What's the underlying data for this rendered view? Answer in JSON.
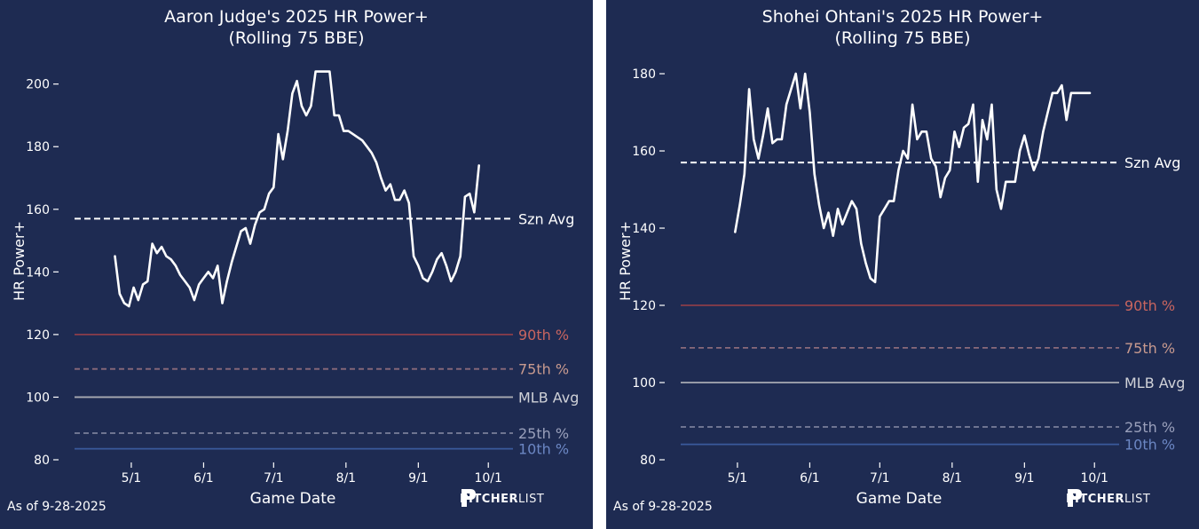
{
  "colors": {
    "background": "#1e2b52",
    "line": "#ffffff",
    "p90": "#8b3d4a",
    "p75": "#8a6a7a",
    "mlb_avg": "#a8aab2",
    "p25": "#7a7f9a",
    "p10": "#3a5a9c",
    "label_p90": "#c8655f",
    "label_p75": "#c89a8f",
    "label_mlb": "#d0d2d8",
    "label_p25": "#9aa0bb",
    "label_p10": "#6c87c4"
  },
  "footer": {
    "as_of": "As of 9-28-2025",
    "brand_bold": "PITCHER",
    "brand_light": "LIST"
  },
  "chart_data": [
    {
      "type": "line",
      "title": "Aaron Judge's 2025 HR Power+",
      "subtitle": "(Rolling 75 BBE)",
      "xlabel": "Game Date",
      "ylabel": "HR Power+",
      "xticks": [
        "5/1",
        "6/1",
        "7/1",
        "8/1",
        "9/1",
        "10/1"
      ],
      "yticks": [
        80,
        100,
        120,
        140,
        160,
        180,
        200
      ],
      "ylim": [
        80,
        207
      ],
      "reference_lines": [
        {
          "name": "Szn Avg",
          "value": 157,
          "style": "dashed",
          "color_key": "line",
          "label_color_key": "line"
        },
        {
          "name": "90th %",
          "value": 120,
          "style": "solid",
          "color_key": "p90",
          "label_color_key": "label_p90"
        },
        {
          "name": "75th %",
          "value": 109,
          "style": "dashed",
          "color_key": "p75",
          "label_color_key": "label_p75"
        },
        {
          "name": "MLB Avg",
          "value": 100,
          "style": "solid",
          "color_key": "mlb_avg",
          "label_color_key": "label_mlb"
        },
        {
          "name": "25th %",
          "value": 88.5,
          "style": "dashed",
          "color_key": "p25",
          "label_color_key": "label_p25"
        },
        {
          "name": "10th %",
          "value": 83.5,
          "style": "solid",
          "color_key": "p10",
          "label_color_key": "label_p10"
        }
      ],
      "x": [
        "4/24",
        "4/26",
        "4/28",
        "4/30",
        "5/2",
        "5/4",
        "5/6",
        "5/8",
        "5/10",
        "5/12",
        "5/14",
        "5/16",
        "5/18",
        "5/20",
        "5/22",
        "5/24",
        "5/26",
        "5/28",
        "5/30",
        "6/1",
        "6/3",
        "6/5",
        "6/7",
        "6/9",
        "6/11",
        "6/13",
        "6/15",
        "6/17",
        "6/19",
        "6/21",
        "6/23",
        "6/25",
        "6/27",
        "6/29",
        "7/1",
        "7/3",
        "7/5",
        "7/7",
        "7/9",
        "7/11",
        "7/13",
        "7/15",
        "7/17",
        "7/19",
        "7/21",
        "7/23",
        "7/25",
        "7/27",
        "7/29",
        "7/31",
        "8/2",
        "8/4",
        "8/6",
        "8/8",
        "8/10",
        "8/12",
        "8/14",
        "8/16",
        "8/18",
        "8/20",
        "8/22",
        "8/24",
        "8/26",
        "8/28",
        "8/30",
        "9/1",
        "9/3",
        "9/5",
        "9/7",
        "9/9",
        "9/11",
        "9/13",
        "9/15",
        "9/17",
        "9/19",
        "9/21",
        "9/23",
        "9/25",
        "9/27"
      ],
      "values": [
        145,
        133,
        130,
        129,
        135,
        131,
        136,
        137,
        149,
        146,
        148,
        145,
        144,
        142,
        139,
        137,
        135,
        131,
        136,
        138,
        140,
        138,
        142,
        130,
        137,
        143,
        148,
        153,
        154,
        149,
        155,
        159,
        160,
        165,
        167,
        184,
        176,
        185,
        197,
        201,
        193,
        190,
        193,
        204,
        204,
        204,
        204,
        190,
        190,
        185,
        185,
        184,
        183,
        182,
        180,
        178,
        175,
        170,
        166,
        168,
        163,
        163,
        166,
        162,
        145,
        142,
        138,
        137,
        140,
        144,
        146,
        142,
        137,
        140,
        145,
        164,
        165,
        159,
        174
      ]
    },
    {
      "type": "line",
      "title": "Shohei Ohtani's 2025 HR Power+",
      "subtitle": "(Rolling 75 BBE)",
      "xlabel": "Game Date",
      "ylabel": "HR Power+",
      "xticks": [
        "5/1",
        "6/1",
        "7/1",
        "8/1",
        "9/1",
        "10/1"
      ],
      "yticks": [
        80,
        100,
        120,
        140,
        160,
        180
      ],
      "ylim": [
        80,
        183
      ],
      "reference_lines": [
        {
          "name": "Szn Avg",
          "value": 157,
          "style": "dashed",
          "color_key": "line",
          "label_color_key": "line"
        },
        {
          "name": "90th %",
          "value": 120,
          "style": "solid",
          "color_key": "p90",
          "label_color_key": "label_p90"
        },
        {
          "name": "75th %",
          "value": 109,
          "style": "dashed",
          "color_key": "p75",
          "label_color_key": "label_p75"
        },
        {
          "name": "MLB Avg",
          "value": 100,
          "style": "solid",
          "color_key": "mlb_avg",
          "label_color_key": "label_mlb"
        },
        {
          "name": "25th %",
          "value": 88.5,
          "style": "dashed",
          "color_key": "p25",
          "label_color_key": "label_p25"
        },
        {
          "name": "10th %",
          "value": 84,
          "style": "solid",
          "color_key": "p10",
          "label_color_key": "label_p10"
        }
      ],
      "x": [
        "4/30",
        "5/2",
        "5/4",
        "5/6",
        "5/8",
        "5/10",
        "5/12",
        "5/14",
        "5/16",
        "5/18",
        "5/20",
        "5/22",
        "5/24",
        "5/26",
        "5/28",
        "5/30",
        "6/1",
        "6/3",
        "6/5",
        "6/7",
        "6/9",
        "6/11",
        "6/13",
        "6/15",
        "6/17",
        "6/19",
        "6/21",
        "6/23",
        "6/25",
        "6/27",
        "6/29",
        "7/1",
        "7/3",
        "7/5",
        "7/7",
        "7/9",
        "7/11",
        "7/13",
        "7/15",
        "7/17",
        "7/19",
        "7/21",
        "7/23",
        "7/25",
        "7/27",
        "7/29",
        "7/31",
        "8/2",
        "8/4",
        "8/6",
        "8/8",
        "8/10",
        "8/12",
        "8/14",
        "8/16",
        "8/18",
        "8/20",
        "8/22",
        "8/24",
        "8/26",
        "8/28",
        "8/30",
        "9/1",
        "9/3",
        "9/5",
        "9/7",
        "9/9",
        "9/11",
        "9/13",
        "9/15",
        "9/17",
        "9/19",
        "9/21",
        "9/23",
        "9/25",
        "9/27",
        "9/29"
      ],
      "values": [
        139,
        146,
        154,
        176,
        163,
        158,
        164,
        171,
        162,
        163,
        163,
        172,
        176,
        180,
        171,
        180,
        170,
        154,
        146,
        140,
        144,
        138,
        145,
        141,
        144,
        147,
        145,
        136,
        131,
        127,
        126,
        143,
        145,
        147,
        147,
        155,
        160,
        158,
        172,
        163,
        165,
        165,
        158,
        156,
        148,
        153,
        155,
        165,
        161,
        166,
        167,
        172,
        152,
        168,
        163,
        172,
        150,
        145,
        152,
        152,
        152,
        160,
        164,
        159,
        155,
        158,
        165,
        170,
        175,
        175,
        177,
        168,
        175,
        175,
        175,
        175,
        175
      ]
    }
  ]
}
